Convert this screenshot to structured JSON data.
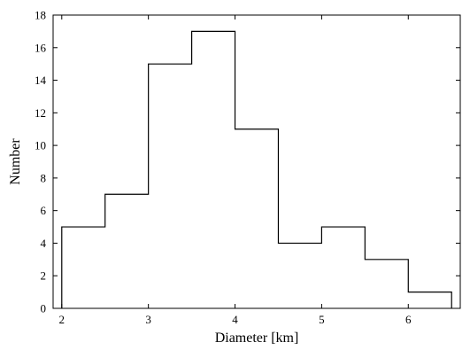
{
  "chart_data": {
    "type": "bar",
    "style": "step-histogram",
    "xlabel": "Diameter [km]",
    "ylabel": "Number",
    "xlim": [
      1.9,
      6.6
    ],
    "ylim": [
      0,
      18
    ],
    "xticks": [
      2,
      3,
      4,
      5,
      6
    ],
    "yticks": [
      0,
      2,
      4,
      6,
      8,
      10,
      12,
      14,
      16,
      18
    ],
    "bin_edges": [
      2.0,
      2.5,
      3.0,
      3.5,
      4.0,
      4.5,
      5.0,
      5.5,
      6.0,
      6.5
    ],
    "values": [
      5,
      7,
      15,
      17,
      11,
      4,
      5,
      3,
      1
    ],
    "grid": false,
    "legend": "none"
  }
}
